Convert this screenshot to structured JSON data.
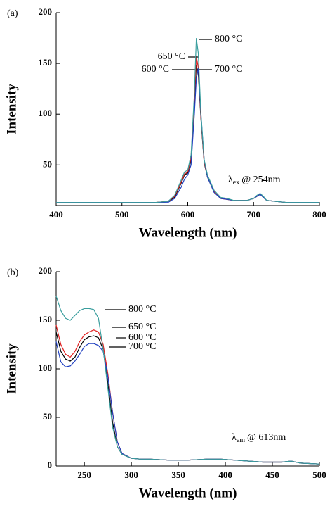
{
  "chart_data": [
    {
      "type": "line",
      "panel_label": "(a)",
      "x_label": "Wavelength (nm)",
      "y_label": "Intensity",
      "annotation": {
        "symbol": "λ",
        "subscript": "ex",
        "text": "@ 254nm"
      },
      "xlim": [
        400,
        800
      ],
      "xticks": [
        400,
        500,
        600,
        700,
        800
      ],
      "ylim": [
        10,
        200
      ],
      "yticks": [
        50,
        100,
        150,
        200
      ],
      "x": [
        400,
        450,
        500,
        550,
        570,
        580,
        590,
        595,
        600,
        605,
        610,
        613,
        616,
        620,
        625,
        630,
        640,
        650,
        660,
        670,
        680,
        690,
        700,
        705,
        710,
        715,
        720,
        750,
        800
      ],
      "series": [
        {
          "name": "600 °C",
          "color": "#000000",
          "values": [
            13,
            13,
            13,
            13,
            14,
            18,
            32,
            40,
            42,
            55,
            110,
            148,
            140,
            95,
            52,
            38,
            23,
            17,
            16,
            15,
            15,
            15,
            17,
            19,
            21,
            18,
            15,
            13,
            13
          ]
        },
        {
          "name": "650 °C",
          "color": "#e02020",
          "values": [
            13,
            13,
            13,
            13,
            14,
            19,
            33,
            41,
            43,
            57,
            115,
            157,
            146,
            97,
            53,
            39,
            24,
            17,
            16,
            15,
            15,
            15,
            17,
            19,
            21,
            18,
            15,
            13,
            13
          ]
        },
        {
          "name": "700 °C",
          "color": "#2040c0",
          "values": [
            13,
            13,
            13,
            13,
            13,
            17,
            28,
            36,
            40,
            50,
            100,
            135,
            145,
            100,
            55,
            38,
            23,
            17,
            16,
            15,
            15,
            15,
            17,
            19,
            21,
            18,
            15,
            13,
            13
          ]
        },
        {
          "name": "800 °C",
          "color": "#3a9e9e",
          "values": [
            13,
            13,
            13,
            13,
            14,
            20,
            35,
            43,
            45,
            60,
            120,
            175,
            160,
            100,
            55,
            40,
            25,
            18,
            17,
            15,
            15,
            15,
            17,
            20,
            22,
            19,
            15,
            13,
            13
          ]
        }
      ]
    },
    {
      "type": "line",
      "panel_label": "(b)",
      "x_label": "Wavelength (nm)",
      "y_label": "Intensity",
      "annotation": {
        "symbol": "λ",
        "subscript": "em",
        "text": "@ 613nm"
      },
      "xlim": [
        220,
        500
      ],
      "xticks": [
        250,
        300,
        350,
        400,
        450,
        500
      ],
      "ylim": [
        0,
        200
      ],
      "yticks": [
        0,
        50,
        100,
        150,
        200
      ],
      "x": [
        220,
        225,
        230,
        235,
        240,
        245,
        250,
        255,
        260,
        265,
        270,
        275,
        280,
        285,
        290,
        300,
        310,
        320,
        340,
        360,
        380,
        395,
        410,
        440,
        460,
        470,
        480,
        500
      ],
      "series": [
        {
          "name": "600 °C",
          "color": "#000000",
          "values": [
            138,
            118,
            110,
            108,
            112,
            122,
            130,
            133,
            134,
            132,
            120,
            85,
            45,
            20,
            12,
            8,
            7,
            7,
            6,
            6,
            7,
            7,
            6,
            4,
            4,
            5,
            3,
            2
          ]
        },
        {
          "name": "650 °C",
          "color": "#e02020",
          "values": [
            145,
            125,
            115,
            112,
            118,
            128,
            135,
            138,
            140,
            138,
            125,
            95,
            55,
            25,
            13,
            8,
            7,
            7,
            6,
            6,
            7,
            7,
            6,
            4,
            4,
            5,
            3,
            2
          ]
        },
        {
          "name": "700 °C",
          "color": "#2040c0",
          "values": [
            128,
            107,
            102,
            103,
            108,
            115,
            123,
            126,
            126,
            124,
            118,
            92,
            55,
            25,
            13,
            8,
            7,
            7,
            6,
            6,
            7,
            7,
            6,
            4,
            4,
            5,
            3,
            2
          ]
        },
        {
          "name": "800 °C",
          "color": "#3a9e9e",
          "values": [
            175,
            160,
            152,
            150,
            155,
            160,
            162,
            162,
            161,
            152,
            120,
            80,
            40,
            20,
            12,
            8,
            7,
            7,
            6,
            6,
            7,
            7,
            6,
            4,
            4,
            5,
            3,
            2
          ]
        }
      ]
    }
  ]
}
